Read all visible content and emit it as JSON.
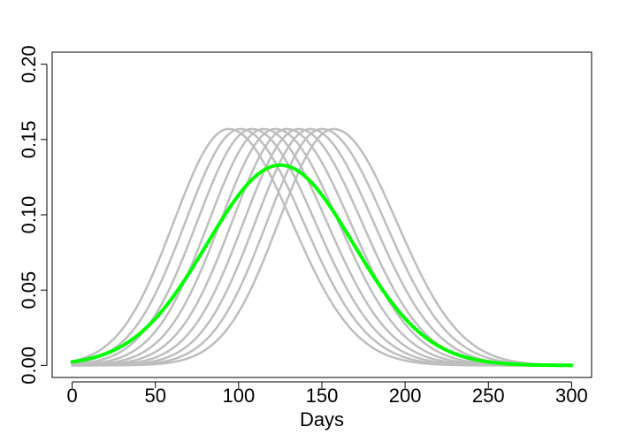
{
  "chart_data": {
    "type": "line",
    "title": "",
    "xlabel": "Days",
    "ylabel": "",
    "xlim": [
      -12,
      312
    ],
    "ylim": [
      -0.008,
      0.208
    ],
    "xticks": [
      0,
      50,
      100,
      150,
      200,
      250,
      300
    ],
    "yticks": [
      0.0,
      0.05,
      0.1,
      0.15,
      0.2
    ],
    "xtick_labels": [
      "0",
      "50",
      "100",
      "150",
      "200",
      "250",
      "300"
    ],
    "ytick_labels": [
      "0.00",
      "0.05",
      "0.10",
      "0.15",
      "0.20"
    ],
    "grid": false,
    "legend": "none",
    "colors": {
      "background_curves": "#bebebe",
      "highlight_curve": "#00ff00"
    },
    "series": [
      {
        "peak_day": 94,
        "peak_value": 0.157,
        "rise_width": 33,
        "fall_width": 38,
        "color": "#bebebe"
      },
      {
        "peak_day": 101,
        "peak_value": 0.157,
        "rise_width": 33,
        "fall_width": 38,
        "color": "#bebebe"
      },
      {
        "peak_day": 108,
        "peak_value": 0.157,
        "rise_width": 33,
        "fall_width": 38,
        "color": "#bebebe"
      },
      {
        "peak_day": 115,
        "peak_value": 0.157,
        "rise_width": 33,
        "fall_width": 38,
        "color": "#bebebe"
      },
      {
        "peak_day": 122,
        "peak_value": 0.157,
        "rise_width": 33,
        "fall_width": 38,
        "color": "#bebebe"
      },
      {
        "peak_day": 129,
        "peak_value": 0.157,
        "rise_width": 33,
        "fall_width": 38,
        "color": "#bebebe"
      },
      {
        "peak_day": 136,
        "peak_value": 0.157,
        "rise_width": 33,
        "fall_width": 38,
        "color": "#bebebe"
      },
      {
        "peak_day": 143,
        "peak_value": 0.157,
        "rise_width": 33,
        "fall_width": 38,
        "color": "#bebebe"
      },
      {
        "peak_day": 150,
        "peak_value": 0.157,
        "rise_width": 33,
        "fall_width": 38,
        "color": "#bebebe"
      },
      {
        "peak_day": 157,
        "peak_value": 0.157,
        "rise_width": 33,
        "fall_width": 38,
        "color": "#bebebe"
      },
      {
        "peak_day": 125,
        "peak_value": 0.133,
        "rise_width": 44,
        "fall_width": 44,
        "color": "#00ff00",
        "highlight": true
      }
    ]
  }
}
